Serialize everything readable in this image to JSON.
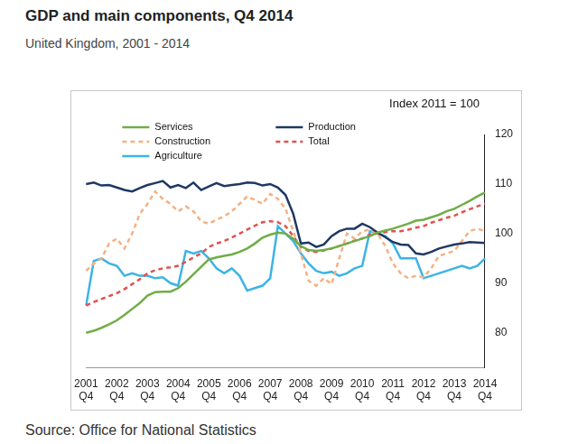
{
  "chart_data": {
    "type": "line",
    "title": "GDP and main components, Q4 2014",
    "subtitle": "United Kingdom, 2001 - 2014",
    "annotations": [
      "Index 2011 = 100"
    ],
    "source": "Source: Office for National Statistics",
    "categories": [
      "2001 Q4",
      null,
      null,
      null,
      "2002 Q4",
      null,
      null,
      null,
      "2003 Q4",
      null,
      null,
      null,
      "2004 Q4",
      null,
      null,
      null,
      "2005 Q4",
      null,
      null,
      null,
      "2006 Q4",
      null,
      null,
      null,
      "2007 Q4",
      null,
      null,
      null,
      "2008 Q4",
      null,
      null,
      null,
      "2009 Q4",
      null,
      null,
      null,
      "2010 Q4",
      null,
      null,
      null,
      "2011 Q4",
      null,
      null,
      null,
      "2012 Q4",
      null,
      null,
      null,
      "2013 Q4",
      null,
      null,
      null,
      "2014 Q4"
    ],
    "series": [
      {
        "name": "Services",
        "color": "#70ad47",
        "line_style": "solid",
        "values": [
          80.0,
          80.4,
          81.0,
          81.7,
          82.5,
          83.6,
          84.8,
          86.0,
          87.5,
          88.2,
          88.3,
          88.3,
          89.0,
          90.3,
          91.8,
          93.3,
          94.8,
          95.2,
          95.5,
          95.8,
          96.3,
          97.0,
          98.0,
          99.2,
          99.8,
          100.2,
          100.0,
          99.0,
          97.5,
          96.7,
          96.5,
          96.7,
          97.0,
          97.5,
          98.0,
          98.5,
          99.0,
          99.5,
          100.2,
          100.6,
          101.0,
          101.5,
          102.0,
          102.6,
          102.8,
          103.3,
          103.8,
          104.5,
          105.0,
          105.8,
          106.6,
          107.5,
          108.3
        ]
      },
      {
        "name": "Production",
        "color": "#1f3864",
        "line_style": "solid",
        "values": [
          110.0,
          110.3,
          109.7,
          109.8,
          109.3,
          108.8,
          108.5,
          109.2,
          109.8,
          110.2,
          110.6,
          109.3,
          109.8,
          109.2,
          110.3,
          108.8,
          109.5,
          110.2,
          109.6,
          109.8,
          110.0,
          110.3,
          110.2,
          109.7,
          110.0,
          109.3,
          107.8,
          104.0,
          98.0,
          98.2,
          97.3,
          97.8,
          99.5,
          100.5,
          101.0,
          101.0,
          102.0,
          101.3,
          100.2,
          99.3,
          98.3,
          97.8,
          97.7,
          96.0,
          95.8,
          96.3,
          97.0,
          97.4,
          97.8,
          98.0,
          98.3,
          98.2,
          98.1
        ]
      },
      {
        "name": "Construction",
        "color": "#f4b183",
        "line_style": "dashed",
        "values": [
          92.5,
          94.0,
          95.0,
          98.0,
          99.0,
          97.0,
          100.0,
          104.0,
          106.0,
          108.5,
          107.0,
          106.0,
          104.5,
          105.5,
          104.5,
          102.5,
          102.0,
          102.8,
          103.5,
          104.5,
          106.0,
          107.5,
          106.8,
          106.0,
          108.0,
          107.0,
          105.0,
          100.5,
          96.0,
          90.5,
          89.5,
          91.0,
          89.8,
          95.0,
          100.0,
          99.0,
          100.5,
          100.8,
          100.0,
          97.5,
          94.0,
          92.0,
          91.0,
          91.5,
          91.2,
          93.0,
          95.5,
          96.0,
          96.5,
          98.5,
          100.5,
          101.0,
          100.5
        ]
      },
      {
        "name": "Total",
        "color": "#e05252",
        "line_style": "dashed",
        "values": [
          85.5,
          86.2,
          86.8,
          87.4,
          88.0,
          88.8,
          89.8,
          90.8,
          92.0,
          92.6,
          93.0,
          93.2,
          93.5,
          94.3,
          95.2,
          96.0,
          97.3,
          98.0,
          98.5,
          99.2,
          100.0,
          100.8,
          101.6,
          102.3,
          102.5,
          102.3,
          101.5,
          99.5,
          97.3,
          96.5,
          96.3,
          96.6,
          97.0,
          97.5,
          98.0,
          98.6,
          99.0,
          99.8,
          100.0,
          100.3,
          100.5,
          100.5,
          100.8,
          101.2,
          101.5,
          102.2,
          102.7,
          103.2,
          103.6,
          104.3,
          104.9,
          105.5,
          106.0
        ]
      },
      {
        "name": "Agriculture",
        "color": "#3cb4e5",
        "line_style": "solid",
        "values": [
          85.5,
          94.5,
          95.0,
          94.0,
          93.5,
          91.5,
          92.0,
          91.5,
          91.5,
          91.0,
          91.2,
          90.0,
          89.5,
          96.5,
          96.0,
          96.5,
          95.0,
          93.0,
          92.0,
          93.0,
          91.5,
          88.5,
          89.0,
          89.5,
          91.0,
          101.5,
          100.0,
          98.5,
          96.0,
          94.0,
          92.5,
          92.0,
          92.3,
          91.5,
          92.0,
          93.0,
          93.5,
          100.5,
          100.0,
          99.5,
          98.0,
          95.0,
          95.0,
          95.0,
          91.0,
          91.5,
          92.0,
          92.5,
          93.0,
          93.5,
          93.0,
          93.5,
          95.0
        ]
      }
    ],
    "ylim": [
      73,
      120
    ],
    "yticks": [
      80,
      90,
      100,
      110,
      120
    ],
    "grid": false,
    "legend": "upper left"
  }
}
